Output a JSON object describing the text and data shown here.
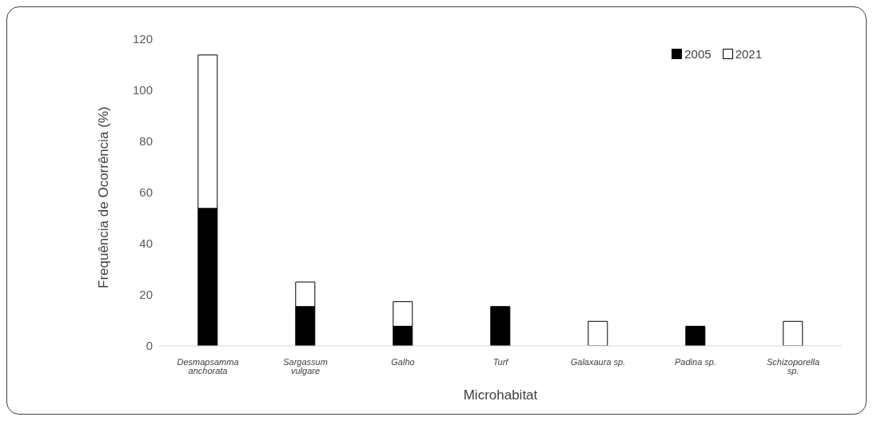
{
  "chart_data": {
    "type": "bar",
    "stacked": true,
    "xlabel": "Microhabitat",
    "ylabel": "Frequência de Ocorrência (%)",
    "categories": [
      "Desmapsamma anchorata",
      "Sargassum vulgare",
      "Galho",
      "Turf",
      "Galaxaura sp.",
      "Padina sp.",
      "Schizoporella sp."
    ],
    "series": [
      {
        "name": "2005",
        "color": "#000000",
        "values": [
          53.8,
          15.4,
          7.7,
          15.4,
          null,
          7.7,
          null
        ]
      },
      {
        "name": "2021",
        "color": "#ffffff",
        "values": [
          60,
          9.6,
          9.6,
          null,
          9.6,
          null,
          9.6
        ]
      }
    ],
    "ylim": [
      0,
      120
    ],
    "yticks": [
      0,
      20,
      40,
      60,
      80,
      100,
      120
    ],
    "legend": "top right"
  }
}
